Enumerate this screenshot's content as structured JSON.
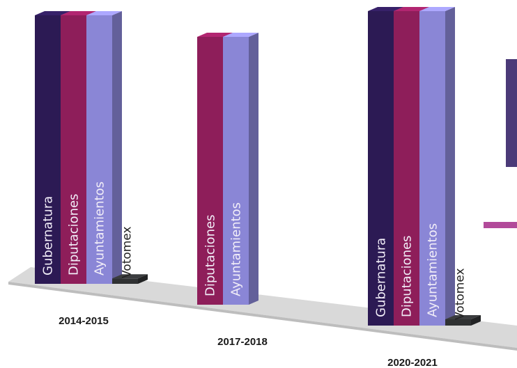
{
  "chart_data": {
    "type": "bar",
    "style": "3d-clustered-columns",
    "categories": [
      "2014-2015",
      "2017-2018",
      "2020-2021"
    ],
    "series": [
      {
        "name": "Gubernatura",
        "color": "#2c1a54",
        "values": [
          1,
          null,
          1
        ]
      },
      {
        "name": "Diputaciones",
        "color": "#8e1e5a",
        "values": [
          1,
          0.93,
          1
        ]
      },
      {
        "name": "Ayuntamientos",
        "color": "#8a86d6",
        "values": [
          1,
          0.93,
          1
        ]
      },
      {
        "name": "Votomex",
        "color": "#2f3132",
        "values": [
          0.02,
          null,
          0.02
        ]
      }
    ],
    "ylim": [
      0,
      1
    ],
    "grid": false,
    "legend": "none",
    "side_marks": [
      {
        "color": "#4b3a78"
      },
      {
        "color": "#b24a9a"
      }
    ]
  }
}
